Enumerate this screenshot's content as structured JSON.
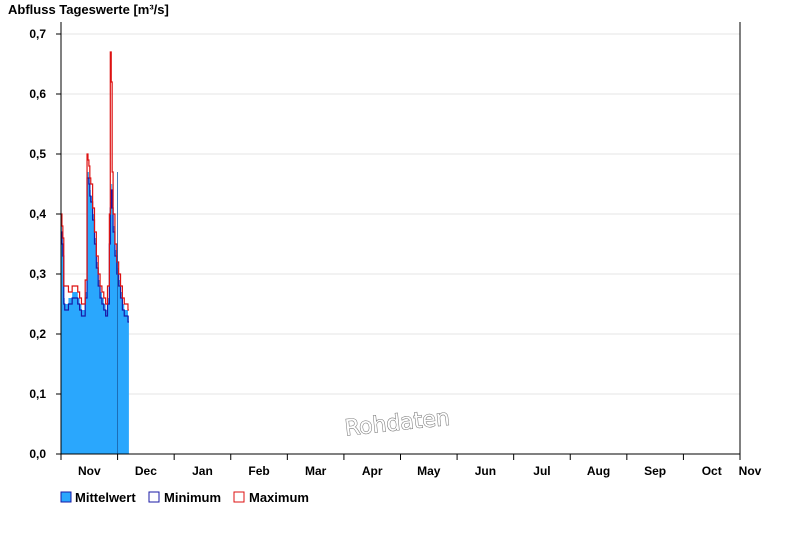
{
  "chart_data": {
    "type": "area",
    "title": "Abfluss Tageswerte [m³/s]",
    "ylim": [
      0,
      0.72
    ],
    "yticks": [
      0,
      0.1,
      0.2,
      0.3,
      0.4,
      0.5,
      0.6,
      0.7
    ],
    "ytick_labels": [
      "0,0",
      "0,1",
      "0,2",
      "0,3",
      "0,4",
      "0,5",
      "0,6",
      "0,7"
    ],
    "x_unit": "days",
    "xlim": [
      0,
      365
    ],
    "month_labels": [
      "Nov",
      "Dec",
      "Jan",
      "Feb",
      "Mar",
      "Apr",
      "May",
      "Jun",
      "Jul",
      "Aug",
      "Sep",
      "Oct",
      "Nov"
    ],
    "grid": true,
    "legend_position": "bottom-left",
    "watermark": "Rohdaten",
    "series": [
      {
        "name": "Mittelwert",
        "color": "#2aa7fd",
        "style": "filled-area",
        "x": [
          0,
          0.5,
          1,
          1.5,
          2,
          3,
          4,
          5,
          6,
          7,
          8,
          9,
          10,
          11,
          12,
          13,
          14,
          14.5,
          15,
          15.5,
          16,
          17,
          18,
          19,
          20,
          21,
          22,
          23,
          24,
          25,
          26,
          26.5,
          27,
          27.5,
          28,
          29,
          30,
          31,
          32,
          33,
          34,
          35,
          36
        ],
        "values": [
          0.38,
          0.36,
          0.34,
          0.26,
          0.25,
          0.25,
          0.26,
          0.26,
          0.27,
          0.27,
          0.27,
          0.26,
          0.25,
          0.24,
          0.24,
          0.27,
          0.47,
          0.47,
          0.46,
          0.44,
          0.43,
          0.4,
          0.36,
          0.32,
          0.29,
          0.27,
          0.26,
          0.25,
          0.24,
          0.26,
          0.36,
          0.42,
          0.45,
          0.42,
          0.38,
          0.34,
          0.31,
          0.29,
          0.27,
          0.25,
          0.24,
          0.24,
          0.23
        ]
      },
      {
        "name": "Minimum",
        "color": "#1a1aa6",
        "style": "line",
        "x": [
          0,
          0.5,
          1,
          1.5,
          2,
          3,
          4,
          5,
          6,
          7,
          8,
          9,
          10,
          11,
          12,
          13,
          14,
          14.5,
          15,
          15.5,
          16,
          17,
          18,
          19,
          20,
          21,
          22,
          23,
          24,
          25,
          26,
          26.5,
          27,
          27.5,
          28,
          29,
          30,
          31,
          32,
          33,
          34,
          35,
          36
        ],
        "values": [
          0.37,
          0.35,
          0.33,
          0.25,
          0.24,
          0.24,
          0.25,
          0.25,
          0.26,
          0.26,
          0.26,
          0.25,
          0.24,
          0.23,
          0.23,
          0.26,
          0.46,
          0.46,
          0.45,
          0.43,
          0.42,
          0.39,
          0.35,
          0.31,
          0.28,
          0.26,
          0.25,
          0.24,
          0.23,
          0.25,
          0.35,
          0.41,
          0.44,
          0.41,
          0.37,
          0.33,
          0.3,
          0.28,
          0.26,
          0.24,
          0.23,
          0.23,
          0.22
        ]
      },
      {
        "name": "Maximum",
        "color": "#dd1111",
        "style": "line",
        "x": [
          0,
          0.5,
          1,
          1.5,
          2,
          3,
          4,
          5,
          6,
          7,
          8,
          9,
          10,
          11,
          12,
          13,
          14,
          14.5,
          15,
          15.5,
          16,
          17,
          18,
          19,
          20,
          21,
          22,
          23,
          24,
          25,
          26,
          26.5,
          27,
          27.5,
          28,
          29,
          30,
          31,
          32,
          33,
          34,
          35,
          36
        ],
        "values": [
          0.4,
          0.38,
          0.36,
          0.28,
          0.28,
          0.28,
          0.27,
          0.27,
          0.28,
          0.28,
          0.28,
          0.27,
          0.26,
          0.25,
          0.25,
          0.29,
          0.5,
          0.49,
          0.48,
          0.46,
          0.45,
          0.41,
          0.37,
          0.33,
          0.3,
          0.28,
          0.27,
          0.26,
          0.25,
          0.28,
          0.4,
          0.67,
          0.62,
          0.47,
          0.4,
          0.35,
          0.32,
          0.3,
          0.28,
          0.26,
          0.25,
          0.25,
          0.24
        ]
      }
    ]
  }
}
